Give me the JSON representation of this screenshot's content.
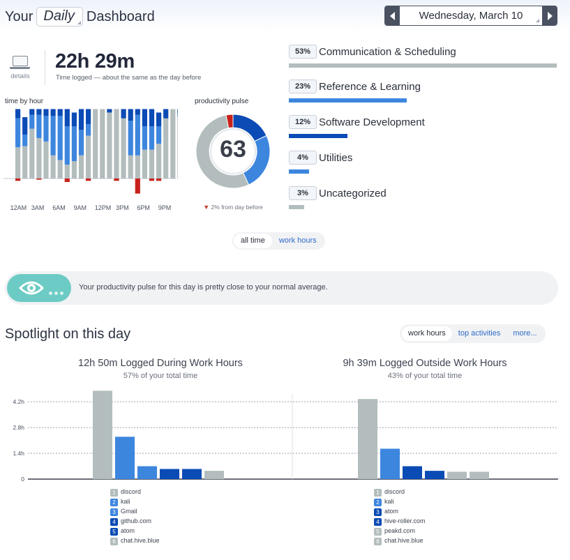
{
  "header": {
    "title_prefix": "Your",
    "period": "Daily",
    "title_suffix": "Dashboard",
    "date": "Wednesday, March 10",
    "prev_icon": "chevron-left-icon",
    "next_icon": "chevron-right-icon"
  },
  "summary": {
    "details_label": "details",
    "details_icon": "laptop-icon",
    "total_time": "22h 29m",
    "total_sub": "Time logged — about the same as the day before"
  },
  "colors": {
    "very_productive": "#0b4bb5",
    "productive": "#3d86de",
    "neutral": "#b3bdbd",
    "distracting": "#c8211b",
    "very_distracting": "#c8211b"
  },
  "hourly": {
    "label": "time by hour",
    "ticks": [
      "12AM",
      "3AM",
      "6AM",
      "9AM",
      "12PM",
      "3PM",
      "6PM",
      "9PM"
    ],
    "chart_data": {
      "type": "bar",
      "categories": [
        "12AM",
        "1AM",
        "2AM",
        "3AM",
        "4AM",
        "5AM",
        "6AM",
        "7AM",
        "8AM",
        "9AM",
        "10AM",
        "11AM",
        "12PM",
        "1PM",
        "2PM",
        "3PM",
        "4PM",
        "5PM",
        "6PM",
        "7PM",
        "8PM",
        "9PM",
        "10PM",
        "11PM"
      ],
      "ylim": [
        -20,
        60
      ],
      "series": [
        {
          "name": "",
          "color_key": "neutral",
          "values": [
            27,
            28,
            43,
            35,
            32,
            20,
            16,
            12,
            15,
            20,
            37,
            60,
            60,
            57,
            60,
            52,
            20,
            20,
            25,
            25,
            30,
            52,
            60,
            53
          ]
        },
        {
          "name": "",
          "color_key": "productive",
          "values": [
            25,
            10,
            12,
            20,
            22,
            34,
            38,
            33,
            30,
            22,
            10,
            0,
            0,
            0,
            0,
            0,
            30,
            35,
            20,
            20,
            15,
            0,
            0,
            3
          ]
        },
        {
          "name": "",
          "color_key": "very_productive",
          "values": [
            8,
            15,
            5,
            5,
            6,
            6,
            6,
            15,
            12,
            18,
            13,
            0,
            0,
            3,
            0,
            8,
            10,
            5,
            15,
            15,
            12,
            8,
            0,
            4
          ]
        },
        {
          "name": "",
          "color_key": "distracting",
          "values": [
            -2,
            0,
            0,
            -1,
            0,
            0,
            0,
            -3,
            0,
            0,
            -2,
            0,
            0,
            0,
            -2,
            0,
            0,
            -13,
            0,
            -2,
            -2,
            0,
            0,
            0
          ]
        }
      ]
    }
  },
  "pulse": {
    "label": "productivity pulse",
    "value": "63",
    "delta": "2% from day before",
    "delta_icon": "down-arrow-icon",
    "chart_data": {
      "type": "pie",
      "labels": [
        "",
        "",
        "",
        ""
      ],
      "values": [
        18,
        25,
        54,
        3
      ],
      "color_keys": [
        "very_productive",
        "productive",
        "neutral",
        "distracting"
      ]
    }
  },
  "categories": [
    {
      "pct": "53%",
      "name": "Communication & Scheduling",
      "fraction": 1.0,
      "color": "#b3bdbd"
    },
    {
      "pct": "23%",
      "name": "Reference & Learning",
      "fraction": 0.44,
      "color": "#3d86de"
    },
    {
      "pct": "12%",
      "name": "Software Development",
      "fraction": 0.22,
      "color": "#0b4bb5"
    },
    {
      "pct": "4%",
      "name": "Utilities",
      "fraction": 0.075,
      "color": "#3d86de"
    },
    {
      "pct": "3%",
      "name": "Uncategorized",
      "fraction": 0.058,
      "color": "#b3bdbd"
    }
  ],
  "time_toggle": {
    "options": [
      "all time",
      "work hours"
    ],
    "active": 0
  },
  "insight": {
    "icon": "eye-icon",
    "message": "Your productivity pulse for this day is pretty close to your normal average."
  },
  "spotlight": {
    "title": "Spotlight on this day",
    "tabs": [
      "work hours",
      "top activities",
      "more..."
    ],
    "active_tab": 0,
    "left": {
      "heading": "12h 50m Logged During Work Hours",
      "sub": "57% of your total time"
    },
    "right": {
      "heading": "9h 39m Logged Outside Work Hours",
      "sub": "43% of your total time"
    },
    "chart_data": [
      {
        "type": "bar",
        "categories": [
          "discord",
          "kali",
          "Gmail",
          "github.com",
          "atom",
          "chat.hive.blue"
        ],
        "values": [
          4.8,
          2.3,
          0.7,
          0.55,
          0.55,
          0.45
        ],
        "color_keys": [
          "neutral",
          "productive",
          "productive",
          "very_productive",
          "very_productive",
          "neutral"
        ],
        "yticks": [
          "0",
          "1.4h",
          "2.8h",
          "4.2h"
        ],
        "ylim": [
          0,
          5
        ]
      },
      {
        "type": "bar",
        "categories": [
          "discord",
          "kali",
          "atom",
          "hive-roller.com",
          "peakd.com",
          "chat.hive.blue"
        ],
        "values": [
          4.35,
          1.65,
          0.7,
          0.45,
          0.4,
          0.4
        ],
        "color_keys": [
          "neutral",
          "productive",
          "very_productive",
          "very_productive",
          "neutral",
          "neutral"
        ],
        "yticks": [
          "0",
          "1.4h",
          "2.8h",
          "4.2h"
        ],
        "ylim": [
          0,
          5
        ]
      }
    ]
  }
}
